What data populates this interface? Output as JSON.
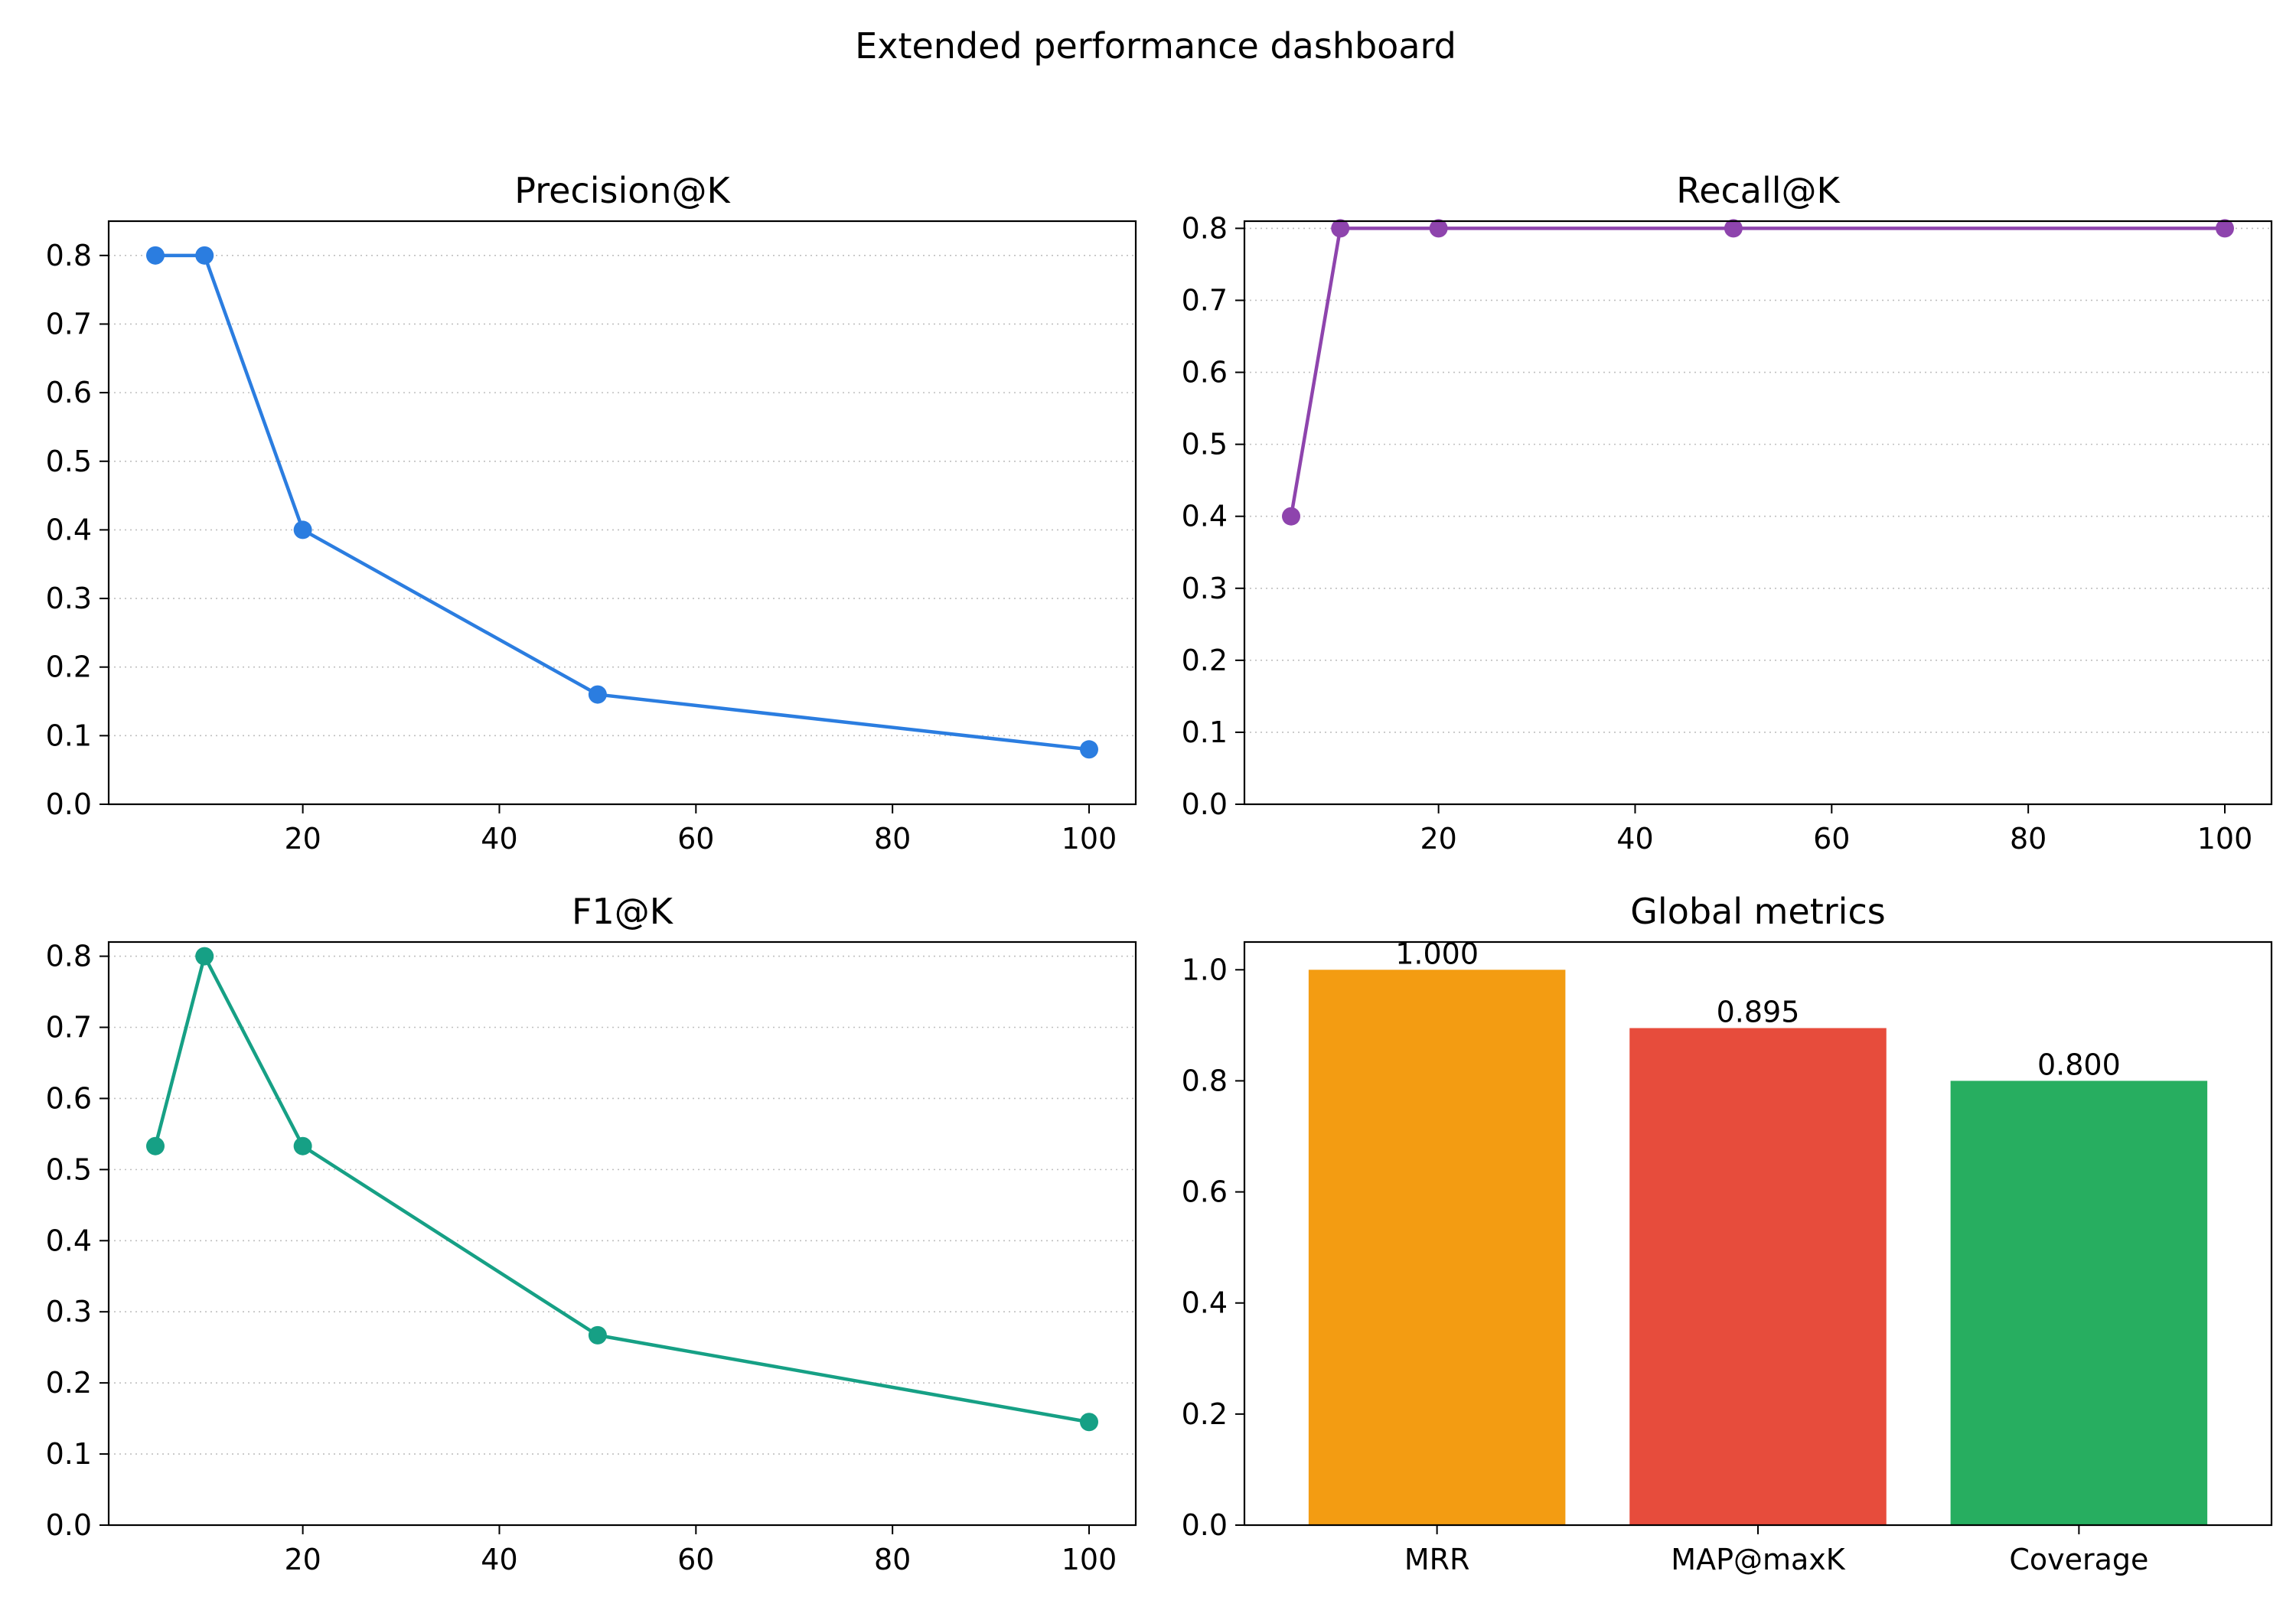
{
  "title": "Extended performance dashboard",
  "chart_data": [
    {
      "id": "precision",
      "type": "line",
      "title": "Precision@K",
      "color": "#2b7de0",
      "x": [
        5,
        10,
        20,
        50,
        100
      ],
      "y": [
        0.8,
        0.8,
        0.4,
        0.16,
        0.08
      ],
      "xlim": [
        0.25,
        104.75
      ],
      "ylim": [
        0,
        0.85
      ],
      "xticks": [
        20,
        40,
        60,
        80,
        100
      ],
      "yticks": [
        0.0,
        0.1,
        0.2,
        0.3,
        0.4,
        0.5,
        0.6,
        0.7,
        0.8
      ],
      "grid": "y-dotted"
    },
    {
      "id": "recall",
      "type": "line",
      "title": "Recall@K",
      "color": "#8e44ad",
      "x": [
        5,
        10,
        20,
        50,
        100
      ],
      "y": [
        0.4,
        0.8,
        0.8,
        0.8,
        0.8
      ],
      "xlim": [
        0.25,
        104.75
      ],
      "ylim": [
        0,
        0.81
      ],
      "xticks": [
        20,
        40,
        60,
        80,
        100
      ],
      "yticks": [
        0.0,
        0.1,
        0.2,
        0.3,
        0.4,
        0.5,
        0.6,
        0.7,
        0.8
      ],
      "grid": "y-dotted"
    },
    {
      "id": "f1",
      "type": "line",
      "title": "F1@K",
      "color": "#16a085",
      "x": [
        5,
        10,
        20,
        50,
        100
      ],
      "y": [
        0.533,
        0.8,
        0.533,
        0.267,
        0.145
      ],
      "xlim": [
        0.25,
        104.75
      ],
      "ylim": [
        0,
        0.82
      ],
      "xticks": [
        20,
        40,
        60,
        80,
        100
      ],
      "yticks": [
        0.0,
        0.1,
        0.2,
        0.3,
        0.4,
        0.5,
        0.6,
        0.7,
        0.8
      ],
      "grid": "y-dotted"
    },
    {
      "id": "global",
      "type": "bar",
      "title": "Global metrics",
      "categories": [
        "MRR",
        "MAP@maxK",
        "Coverage"
      ],
      "values": [
        1.0,
        0.895,
        0.8
      ],
      "value_labels": [
        "1.000",
        "0.895",
        "0.800"
      ],
      "colors": [
        "#f39c12",
        "#e74c3c",
        "#27ae60"
      ],
      "ylim": [
        0,
        1.05
      ],
      "yticks": [
        0.0,
        0.2,
        0.4,
        0.6,
        0.8,
        1.0
      ],
      "grid": "none"
    }
  ]
}
